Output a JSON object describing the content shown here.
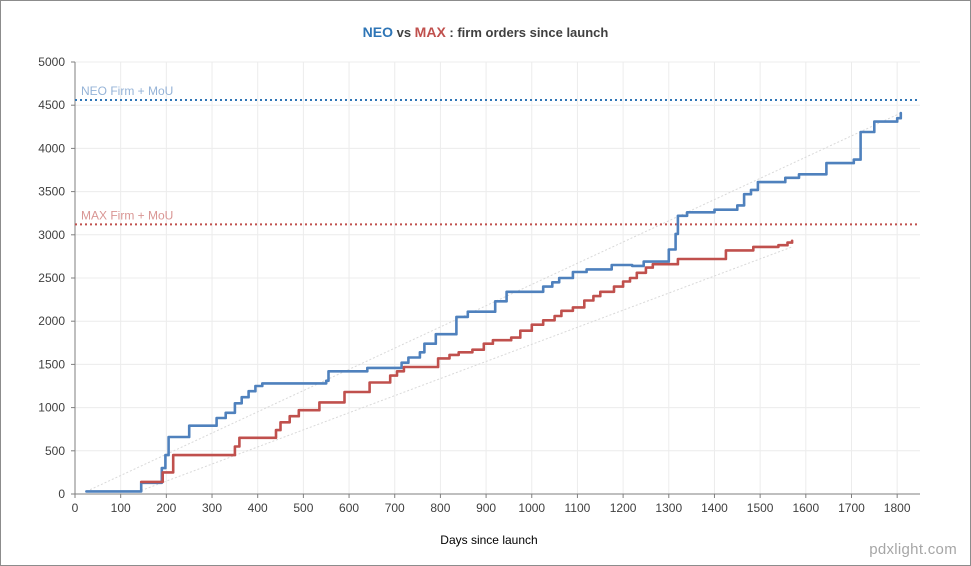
{
  "title": {
    "neo": "NEO",
    "vs": " vs ",
    "max": "MAX",
    "rest": " : firm orders since launch"
  },
  "watermark": "pdxlight.com",
  "colors": {
    "neo": "#4f81bd",
    "neo_title": "#2e75b6",
    "neo_ref": "#2e75b6",
    "neo_ref_label": "#95b3d7",
    "max": "#c0504d",
    "max_ref": "#c0504d",
    "max_ref_label": "#d99694",
    "trend": "#d9d9d9",
    "grid": "#ececec",
    "axis": "#404040"
  },
  "chart_data": {
    "type": "line",
    "title": "NEO vs MAX : firm orders since launch",
    "xlabel": "Days since launch",
    "ylabel": "",
    "xlim": [
      0,
      1850
    ],
    "ylim": [
      0,
      5000
    ],
    "x_ticks": [
      0,
      100,
      200,
      300,
      400,
      500,
      600,
      700,
      800,
      900,
      1000,
      1100,
      1200,
      1300,
      1400,
      1500,
      1600,
      1700,
      1800
    ],
    "y_ticks": [
      0,
      500,
      1000,
      1500,
      2000,
      2500,
      3000,
      3500,
      4000,
      4500,
      5000
    ],
    "grid": true,
    "legend": "none",
    "reference_lines": [
      {
        "name": "NEO Firm + MoU",
        "y": 4560,
        "series": "NEO",
        "style": "dotted"
      },
      {
        "name": "MAX Firm + MoU",
        "y": 3120,
        "series": "MAX",
        "style": "dotted"
      }
    ],
    "series": [
      {
        "series": "NEO",
        "step": true,
        "points": [
          [
            25,
            30
          ],
          [
            145,
            30
          ],
          [
            145,
            130
          ],
          [
            190,
            130
          ],
          [
            190,
            300
          ],
          [
            198,
            300
          ],
          [
            198,
            450
          ],
          [
            205,
            450
          ],
          [
            205,
            660
          ],
          [
            250,
            660
          ],
          [
            250,
            790
          ],
          [
            310,
            790
          ],
          [
            310,
            880
          ],
          [
            330,
            880
          ],
          [
            330,
            940
          ],
          [
            350,
            940
          ],
          [
            350,
            1050
          ],
          [
            365,
            1050
          ],
          [
            365,
            1120
          ],
          [
            380,
            1120
          ],
          [
            380,
            1190
          ],
          [
            395,
            1190
          ],
          [
            395,
            1250
          ],
          [
            410,
            1250
          ],
          [
            410,
            1280
          ],
          [
            550,
            1280
          ],
          [
            550,
            1310
          ],
          [
            555,
            1310
          ],
          [
            555,
            1420
          ],
          [
            640,
            1420
          ],
          [
            640,
            1460
          ],
          [
            715,
            1460
          ],
          [
            715,
            1520
          ],
          [
            730,
            1520
          ],
          [
            730,
            1580
          ],
          [
            755,
            1580
          ],
          [
            755,
            1640
          ],
          [
            765,
            1640
          ],
          [
            765,
            1740
          ],
          [
            790,
            1740
          ],
          [
            790,
            1850
          ],
          [
            835,
            1850
          ],
          [
            835,
            2050
          ],
          [
            860,
            2050
          ],
          [
            860,
            2110
          ],
          [
            920,
            2110
          ],
          [
            920,
            2230
          ],
          [
            945,
            2230
          ],
          [
            945,
            2340
          ],
          [
            1025,
            2340
          ],
          [
            1025,
            2400
          ],
          [
            1045,
            2400
          ],
          [
            1045,
            2450
          ],
          [
            1060,
            2450
          ],
          [
            1060,
            2500
          ],
          [
            1090,
            2500
          ],
          [
            1090,
            2570
          ],
          [
            1120,
            2570
          ],
          [
            1120,
            2600
          ],
          [
            1175,
            2600
          ],
          [
            1175,
            2650
          ],
          [
            1220,
            2650
          ],
          [
            1220,
            2640
          ],
          [
            1245,
            2640
          ],
          [
            1245,
            2690
          ],
          [
            1300,
            2690
          ],
          [
            1300,
            2830
          ],
          [
            1315,
            2830
          ],
          [
            1315,
            3010
          ],
          [
            1320,
            3010
          ],
          [
            1320,
            3220
          ],
          [
            1340,
            3220
          ],
          [
            1340,
            3260
          ],
          [
            1400,
            3260
          ],
          [
            1400,
            3290
          ],
          [
            1450,
            3290
          ],
          [
            1450,
            3340
          ],
          [
            1465,
            3340
          ],
          [
            1465,
            3470
          ],
          [
            1480,
            3470
          ],
          [
            1480,
            3520
          ],
          [
            1495,
            3520
          ],
          [
            1495,
            3610
          ],
          [
            1555,
            3610
          ],
          [
            1555,
            3660
          ],
          [
            1585,
            3660
          ],
          [
            1585,
            3700
          ],
          [
            1645,
            3700
          ],
          [
            1645,
            3830
          ],
          [
            1705,
            3830
          ],
          [
            1705,
            3870
          ],
          [
            1720,
            3870
          ],
          [
            1720,
            4190
          ],
          [
            1750,
            4190
          ],
          [
            1750,
            4310
          ],
          [
            1800,
            4310
          ],
          [
            1800,
            4350
          ],
          [
            1808,
            4350
          ],
          [
            1808,
            4410
          ]
        ]
      },
      {
        "series": "MAX",
        "step": true,
        "points": [
          [
            145,
            140
          ],
          [
            192,
            140
          ],
          [
            192,
            250
          ],
          [
            215,
            250
          ],
          [
            215,
            450
          ],
          [
            350,
            450
          ],
          [
            350,
            550
          ],
          [
            360,
            550
          ],
          [
            360,
            650
          ],
          [
            440,
            650
          ],
          [
            440,
            740
          ],
          [
            450,
            740
          ],
          [
            450,
            830
          ],
          [
            470,
            830
          ],
          [
            470,
            900
          ],
          [
            490,
            900
          ],
          [
            490,
            970
          ],
          [
            535,
            970
          ],
          [
            535,
            1060
          ],
          [
            590,
            1060
          ],
          [
            590,
            1180
          ],
          [
            645,
            1180
          ],
          [
            645,
            1290
          ],
          [
            690,
            1290
          ],
          [
            690,
            1370
          ],
          [
            705,
            1370
          ],
          [
            705,
            1420
          ],
          [
            720,
            1420
          ],
          [
            720,
            1470
          ],
          [
            795,
            1470
          ],
          [
            795,
            1570
          ],
          [
            820,
            1570
          ],
          [
            820,
            1610
          ],
          [
            840,
            1610
          ],
          [
            840,
            1640
          ],
          [
            870,
            1640
          ],
          [
            870,
            1670
          ],
          [
            895,
            1670
          ],
          [
            895,
            1740
          ],
          [
            915,
            1740
          ],
          [
            915,
            1780
          ],
          [
            955,
            1780
          ],
          [
            955,
            1810
          ],
          [
            975,
            1810
          ],
          [
            975,
            1890
          ],
          [
            1000,
            1890
          ],
          [
            1000,
            1960
          ],
          [
            1025,
            1960
          ],
          [
            1025,
            2010
          ],
          [
            1050,
            2010
          ],
          [
            1050,
            2060
          ],
          [
            1065,
            2060
          ],
          [
            1065,
            2120
          ],
          [
            1090,
            2120
          ],
          [
            1090,
            2160
          ],
          [
            1115,
            2160
          ],
          [
            1115,
            2240
          ],
          [
            1135,
            2240
          ],
          [
            1135,
            2290
          ],
          [
            1150,
            2290
          ],
          [
            1150,
            2340
          ],
          [
            1180,
            2340
          ],
          [
            1180,
            2400
          ],
          [
            1200,
            2400
          ],
          [
            1200,
            2460
          ],
          [
            1215,
            2460
          ],
          [
            1215,
            2500
          ],
          [
            1230,
            2500
          ],
          [
            1230,
            2560
          ],
          [
            1250,
            2560
          ],
          [
            1250,
            2620
          ],
          [
            1265,
            2620
          ],
          [
            1265,
            2660
          ],
          [
            1320,
            2660
          ],
          [
            1320,
            2720
          ],
          [
            1425,
            2720
          ],
          [
            1425,
            2820
          ],
          [
            1485,
            2820
          ],
          [
            1485,
            2860
          ],
          [
            1540,
            2860
          ],
          [
            1540,
            2880
          ],
          [
            1560,
            2880
          ],
          [
            1560,
            2910
          ],
          [
            1570,
            2910
          ],
          [
            1570,
            2930
          ]
        ]
      }
    ],
    "trendlines": [
      {
        "series": "NEO",
        "from": [
          25,
          30
        ],
        "to": [
          1808,
          4410
        ],
        "style": "dotted"
      },
      {
        "series": "MAX",
        "from": [
          145,
          40
        ],
        "to": [
          1570,
          2860
        ],
        "style": "dotted"
      }
    ]
  }
}
